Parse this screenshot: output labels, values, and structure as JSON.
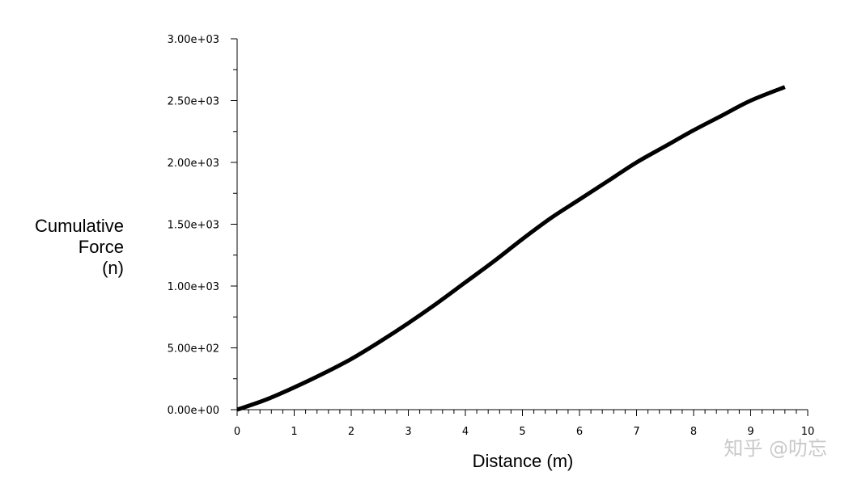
{
  "chart_data": {
    "type": "line",
    "title": "",
    "xlabel": "Distance (m)",
    "ylabel_lines": [
      "Cumulative",
      "Force",
      "(n)"
    ],
    "xlim": [
      0,
      10
    ],
    "ylim": [
      0,
      3000
    ],
    "x_ticks": [
      "0",
      "1",
      "2",
      "3",
      "4",
      "5",
      "6",
      "7",
      "8",
      "9",
      "10"
    ],
    "y_ticks": [
      "0.00e+00",
      "5.00e+02",
      "1.00e+03",
      "1.50e+03",
      "2.00e+03",
      "2.50e+03",
      "3.00e+03"
    ],
    "grid": false,
    "legend": "none",
    "line_color": "#000000",
    "series": [
      {
        "x": [
          0,
          0.5,
          1,
          1.5,
          2,
          2.5,
          3,
          3.5,
          4,
          4.5,
          5,
          5.5,
          6,
          6.5,
          7,
          7.5,
          8,
          8.5,
          9,
          9.6
        ],
        "y": [
          0,
          80,
          180,
          290,
          410,
          550,
          700,
          860,
          1030,
          1200,
          1380,
          1550,
          1700,
          1850,
          2000,
          2130,
          2260,
          2380,
          2500,
          2610
        ]
      }
    ]
  },
  "watermark": "知乎 @叻忘"
}
